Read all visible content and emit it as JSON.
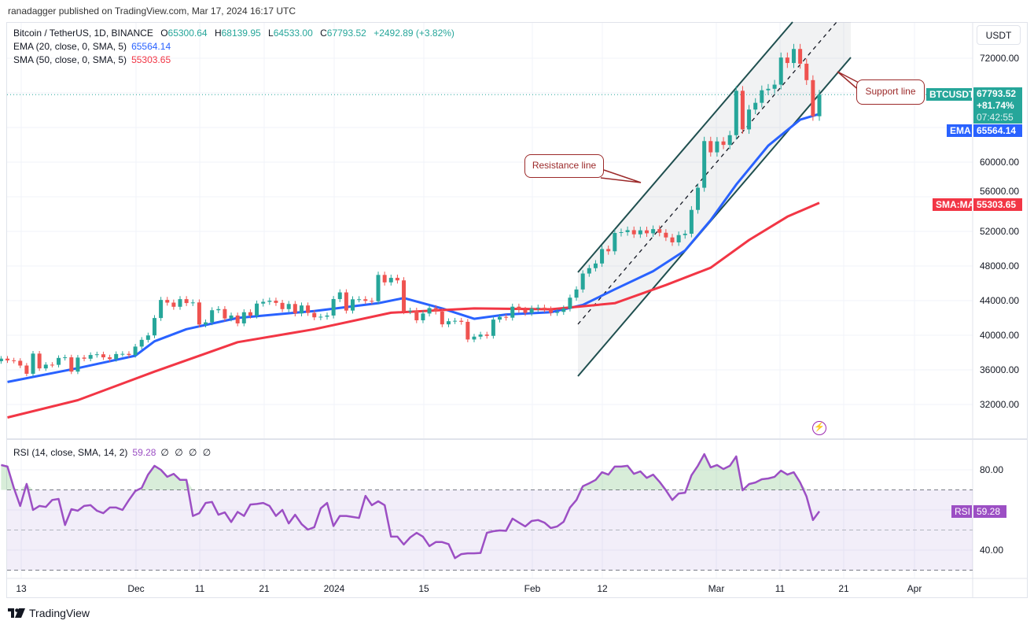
{
  "publish_line": "ranadagger published on TradingView.com, Mar 17, 2024 16:17 UTC",
  "legend": {
    "symbol": "Bitcoin / TetherUS, 1D, BINANCE",
    "o_label": "O",
    "open": "65300.64",
    "h_label": "H",
    "high": "68139.95",
    "l_label": "L",
    "low": "64533.00",
    "c_label": "C",
    "close": "67793.52",
    "change": "+2492.89 (+3.82%)",
    "ema_label": "EMA (20, close, 0, SMA, 5)",
    "ema_value": "65564.14",
    "sma_label": "SMA (50, close, 0, SMA, 5)",
    "sma_value": "55303.65",
    "rsi_label": "RSI (14, close, SMA, 14, 2)",
    "rsi_value": "59.28",
    "rsi_extras": "∅ ∅ ∅ ∅"
  },
  "currency_button": "USDT",
  "tags": {
    "symbol": "BTCUSDT",
    "price": "67793.52",
    "change_pct": "+81.74%",
    "countdown": "07:42:55",
    "ema": "EMA",
    "ema_value": "65564.14",
    "sma": "SMA:MA",
    "sma_value": "55303.65",
    "rsi": "RSI",
    "rsi_value": "59.28"
  },
  "annotations": {
    "resistance": "Resistance line",
    "support": "Support line"
  },
  "brand": "TradingView",
  "colors": {
    "up": "#26a69a",
    "down": "#ef5350",
    "ema": "#2962ff",
    "sma": "#f23645",
    "rsi": "#9c4fc4",
    "channel": "#1f4f4f"
  },
  "chart_data": [
    {
      "type": "candlestick",
      "interval": "1D",
      "x_start": "2023-11-10",
      "x_end": "2024-03-17",
      "ylim": [
        30000,
        76000
      ],
      "price_ticks": [
        "72000.00",
        "60000.00",
        "56000.00",
        "52000.00",
        "48000.00",
        "44000.00",
        "40000.00",
        "36000.00",
        "32000.00"
      ],
      "date_ticks": [
        "13",
        "Dec",
        "11",
        "21",
        "2024",
        "15",
        "Feb",
        "12",
        "Mar",
        "11",
        "21",
        "Apr"
      ],
      "close": [
        37300,
        37100,
        37050,
        36500,
        35550,
        37880,
        36170,
        36600,
        36580,
        37380,
        37450,
        35800,
        37420,
        37290,
        37720,
        37800,
        37450,
        37250,
        37830,
        37850,
        37720,
        38690,
        39470,
        39980,
        41990,
        44080,
        43770,
        43290,
        44170,
        43720,
        43790,
        41240,
        41490,
        42890,
        43020,
        41940,
        42280,
        41370,
        42660,
        42270,
        43660,
        43860,
        43990,
        43740,
        43020,
        43610,
        42520,
        43440,
        42580,
        42070,
        42140,
        42280,
        44180,
        44950,
        42850,
        44150,
        44160,
        43970,
        43930,
        46970,
        46110,
        46630,
        46340,
        42780,
        42840,
        41730,
        42510,
        43140,
        42740,
        41260,
        41620,
        41670,
        41550,
        39510,
        39840,
        40080,
        39930,
        41810,
        42120,
        42030,
        43300,
        42940,
        42580,
        43080,
        43190,
        42990,
        42580,
        42700,
        43090,
        44340,
        45290,
        47130,
        47750,
        48290,
        49960,
        49700,
        51820,
        51910,
        52140,
        51660,
        52120,
        51780,
        52260,
        51840,
        51300,
        50730,
        51570,
        51730,
        54480,
        57040,
        62430,
        61130,
        62390,
        61990,
        63110,
        68240,
        63780,
        66070,
        66850,
        68300,
        68470,
        68950,
        72080,
        71450,
        73070,
        71370,
        69470,
        65300,
        67793.52
      ],
      "series": [
        {
          "name": "EMA (20, close, 0, SMA, 5)",
          "points": [
            [
              "2023-11-11",
              34600
            ],
            [
              "2023-11-22",
              36200
            ],
            [
              "2023-12-01",
              37640
            ],
            [
              "2023-12-04",
              39300
            ],
            [
              "2023-12-09",
              40700
            ],
            [
              "2023-12-17",
              42000
            ],
            [
              "2023-12-29",
              42800
            ],
            [
              "2024-01-08",
              43700
            ],
            [
              "2024-01-12",
              44300
            ],
            [
              "2024-01-18",
              43100
            ],
            [
              "2024-01-23",
              41900
            ],
            [
              "2024-01-28",
              42400
            ],
            [
              "2024-02-04",
              42650
            ],
            [
              "2024-02-09",
              43500
            ],
            [
              "2024-02-14",
              45300
            ],
            [
              "2024-02-20",
              47400
            ],
            [
              "2024-02-25",
              49800
            ],
            [
              "2024-02-29",
              53300
            ],
            [
              "2024-03-04",
              57400
            ],
            [
              "2024-03-09",
              61900
            ],
            [
              "2024-03-14",
              64900
            ],
            [
              "2024-03-17",
              65564.14
            ]
          ]
        },
        {
          "name": "SMA (50, close, 0, SMA, 5)",
          "points": [
            [
              "2023-11-11",
              30500
            ],
            [
              "2023-11-22",
              32500
            ],
            [
              "2023-12-04",
              35800
            ],
            [
              "2023-12-17",
              39200
            ],
            [
              "2023-12-29",
              40700
            ],
            [
              "2024-01-10",
              42600
            ],
            [
              "2024-01-23",
              43100
            ],
            [
              "2024-02-04",
              43000
            ],
            [
              "2024-02-14",
              43700
            ],
            [
              "2024-02-22",
              45800
            ],
            [
              "2024-02-29",
              47800
            ],
            [
              "2024-03-06",
              51000
            ],
            [
              "2024-03-12",
              53700
            ],
            [
              "2024-03-17",
              55303.65
            ]
          ]
        }
      ]
    },
    {
      "type": "line",
      "title": "RSI (14, close, SMA, 14, 2)",
      "ylim": [
        25,
        92
      ],
      "ticks": [
        "80.00",
        "40.00"
      ],
      "bands": [
        70,
        50,
        30
      ],
      "values": [
        82.4,
        81.6,
        71,
        62,
        73,
        60,
        62,
        61.5,
        65,
        65.5,
        52.5,
        60.4,
        59.6,
        62,
        62.4,
        59.6,
        58.4,
        61.2,
        61.2,
        60,
        65,
        69.4,
        71,
        77.6,
        82,
        80,
        76.5,
        78,
        75,
        75,
        57,
        58.4,
        63.5,
        64,
        57.6,
        58.8,
        54,
        59,
        57,
        62.7,
        63,
        63.5,
        62,
        57,
        60,
        53.3,
        57.6,
        53,
        50.2,
        51.4,
        60.8,
        63.5,
        52,
        57,
        57,
        56.5,
        56,
        67,
        62.4,
        64.3,
        62.4,
        46.7,
        46.7,
        42.8,
        46.3,
        48.6,
        46.7,
        42,
        44,
        44,
        43,
        36,
        38,
        38.4,
        38.4,
        38.6,
        48.6,
        49.4,
        49.8,
        49.6,
        55.7,
        53.7,
        51.8,
        54.5,
        55,
        53.7,
        51,
        51.8,
        54.1,
        61.2,
        65,
        71.8,
        73.3,
        75,
        78.8,
        77.6,
        81.6,
        81.6,
        82,
        78,
        79.2,
        76,
        77.6,
        74,
        69.8,
        65,
        68.2,
        68.6,
        77.3,
        82,
        87.8,
        81.2,
        82.4,
        80.4,
        82,
        86.7,
        69.8,
        72.9,
        73.7,
        75.3,
        75.7,
        76.5,
        79.6,
        77.6,
        78.8,
        73.7,
        66.7,
        55,
        59.28
      ]
    }
  ]
}
